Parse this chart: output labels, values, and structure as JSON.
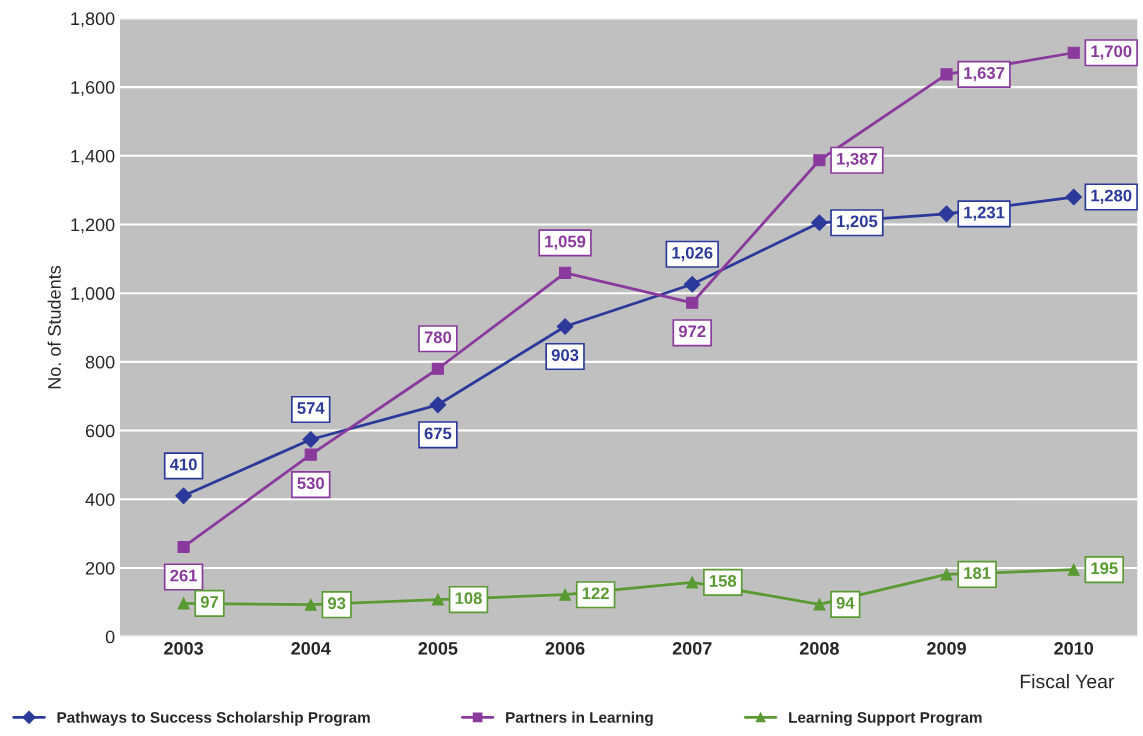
{
  "chart_data": {
    "type": "line",
    "ylabel": "No. of Students",
    "xlabel": "Fiscal Year",
    "categories": [
      "2003",
      "2004",
      "2005",
      "2006",
      "2007",
      "2008",
      "2009",
      "2010"
    ],
    "ylim": [
      0,
      1800
    ],
    "yticks": [
      0,
      200,
      400,
      600,
      800,
      {
        "value": 1000,
        "label": "1,000"
      },
      {
        "value": 1200,
        "label": "1,200"
      },
      {
        "value": 1400,
        "label": "1,400"
      },
      {
        "value": 1600,
        "label": "1,600"
      },
      {
        "value": 1800,
        "label": "1,800"
      }
    ],
    "grid": "y",
    "legend": "bottom",
    "series": [
      {
        "name": "Pathways to Success Scholarship Program",
        "color": "#2b3a9a",
        "marker": "diamond",
        "values": [
          410,
          574,
          675,
          903,
          1026,
          1205,
          1231,
          1280
        ],
        "value_labels": [
          "410",
          "574",
          "675",
          "903",
          "1,026",
          "1,205",
          "1,231",
          "1,280"
        ]
      },
      {
        "name": "Partners in Learning",
        "color": "#8a3a9c",
        "marker": "square",
        "values": [
          261,
          530,
          780,
          1059,
          972,
          1387,
          1637,
          1700
        ],
        "value_labels": [
          "261",
          "530",
          "780",
          "1,059",
          "972",
          "1,387",
          "1,637",
          "1,700"
        ]
      },
      {
        "name": "Learning Support Program",
        "color": "#5a9a32",
        "marker": "triangle",
        "values": [
          97,
          93,
          108,
          122,
          158,
          94,
          181,
          195
        ],
        "value_labels": [
          "97",
          "93",
          "108",
          "122",
          "158",
          "94",
          "181",
          "195"
        ]
      }
    ]
  }
}
